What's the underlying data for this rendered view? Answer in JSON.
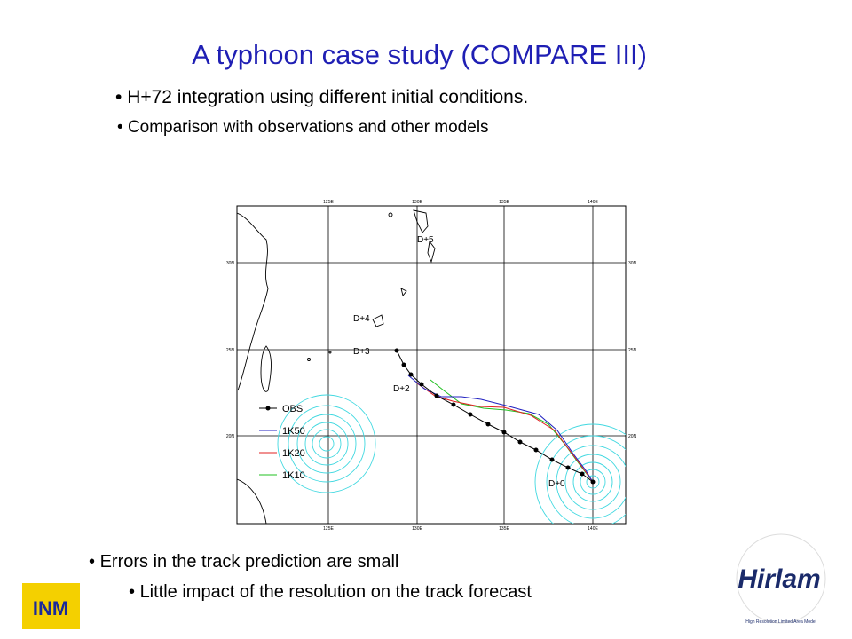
{
  "title": "A typhoon case study (COMPARE III)",
  "bullets_top": [
    "H+72 integration using different initial conditions.",
    "Comparison with observations and other models"
  ],
  "figure": {
    "lon_labels": [
      "125E",
      "130E",
      "135E",
      "140E"
    ],
    "lat_labels": [
      "30N",
      "25N",
      "20N"
    ],
    "day_labels": [
      "D+5",
      "D+4",
      "D+3",
      "D+2",
      "D+0"
    ],
    "legend": [
      "OBS",
      "1K50",
      "1K20",
      "1K10"
    ]
  },
  "bullets_bottom": [
    "Errors in the track prediction are small",
    "Little impact of the resolution on the track forecast"
  ],
  "logos": {
    "left": "INM",
    "right": "Hirlam",
    "right_ring": "High Resolution Limited Area Model"
  }
}
